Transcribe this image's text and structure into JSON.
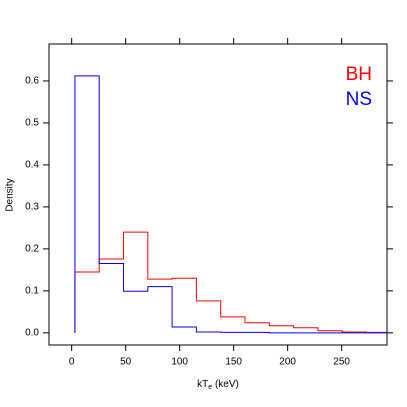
{
  "chart_data": {
    "type": "step-histogram",
    "y_label": "Density",
    "x_label": [
      "kT",
      "e",
      " (keV)"
    ],
    "bins": [
      3,
      25.5,
      48,
      70.5,
      93,
      115.5,
      138,
      160.5,
      183,
      205.5,
      228,
      250.5,
      273,
      295.5
    ],
    "series": [
      {
        "name": "BH",
        "color": "#ff0000",
        "values": [
          0.145,
          0.176,
          0.24,
          0.128,
          0.13,
          0.076,
          0.038,
          0.024,
          0.017,
          0.012,
          0.005,
          0.002,
          0.001
        ]
      },
      {
        "name": "NS",
        "color": "#0000ff",
        "values": [
          0.612,
          0.165,
          0.099,
          0.11,
          0.014,
          0.002,
          0.001,
          0.001,
          0,
          0,
          0,
          0,
          0
        ]
      }
    ],
    "xlim": [
      -21,
      292
    ],
    "ylim": [
      -0.029,
      0.688
    ],
    "xticks": [
      0,
      50,
      100,
      150,
      200,
      250
    ],
    "yticks": [
      {
        "value": 0,
        "label": "0.0"
      },
      0.1,
      0.2,
      0.3,
      0.4,
      0.5,
      0.6
    ],
    "legend": "top-right"
  }
}
